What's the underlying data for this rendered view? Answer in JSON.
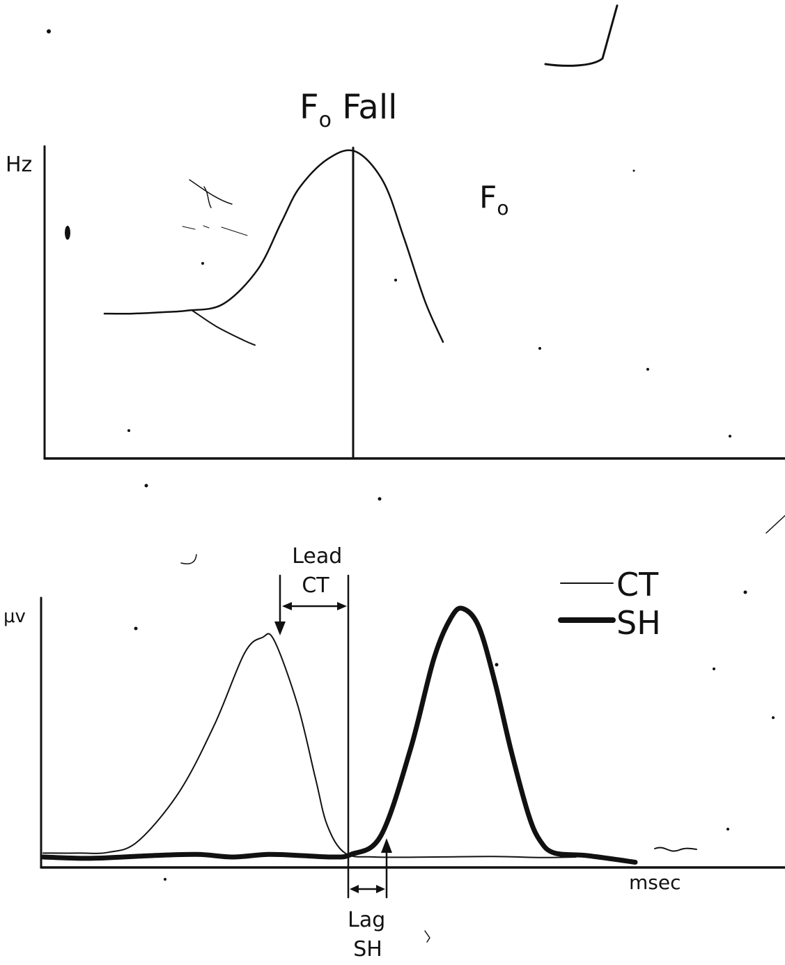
{
  "title": {
    "main": "F",
    "subscript": "o",
    "suffix": " Fall"
  },
  "colors": {
    "ink": "#111111",
    "paper": "#ffffff"
  },
  "chart_data": [
    {
      "type": "line",
      "ylabel": "Hz",
      "curve_label": {
        "main": "F",
        "subscript": "o"
      },
      "marker": "vertical line at F0 peak",
      "series": [
        {
          "x": [
            0,
            20,
            45,
            60,
            85,
            110,
            127,
            140,
            160,
            180,
            200,
            215,
            230,
            243
          ],
          "y": [
            0.46,
            0.46,
            0.465,
            0.47,
            0.49,
            0.6,
            0.75,
            0.86,
            0.95,
            0.975,
            0.88,
            0.7,
            0.5,
            0.37
          ]
        },
        {
          "x": [
            63,
            80,
            100,
            108
          ],
          "y": [
            0.47,
            0.42,
            0.375,
            0.36
          ]
        }
      ]
    },
    {
      "type": "line",
      "ylabel": "μv",
      "xlabel": "msec",
      "legend_position": "top-right",
      "annotations": [
        {
          "lines": [
            "Lead",
            "CT"
          ]
        },
        {
          "lines": [
            "Lag",
            "SH"
          ]
        }
      ],
      "series": [
        {
          "name": "CT",
          "x": [
            0,
            30,
            55,
            80,
            115,
            145,
            170,
            185,
            195,
            215,
            230,
            240,
            255,
            280,
            330,
            380,
            420,
            450
          ],
          "y": [
            0.055,
            0.055,
            0.058,
            0.1,
            0.29,
            0.55,
            0.82,
            0.88,
            0.87,
            0.62,
            0.34,
            0.16,
            0.055,
            0.04,
            0.04,
            0.042,
            0.038,
            0.04
          ]
        },
        {
          "name": "SH",
          "x": [
            0,
            40,
            90,
            130,
            160,
            190,
            220,
            245,
            260,
            285,
            310,
            330,
            345,
            355,
            368,
            382,
            395,
            410,
            420,
            432,
            460,
            500
          ],
          "y": [
            0.04,
            0.035,
            0.045,
            0.05,
            0.04,
            0.05,
            0.045,
            0.04,
            0.05,
            0.12,
            0.45,
            0.8,
            0.96,
            0.99,
            0.92,
            0.7,
            0.45,
            0.2,
            0.1,
            0.055,
            0.045,
            0.02
          ]
        }
      ]
    }
  ]
}
